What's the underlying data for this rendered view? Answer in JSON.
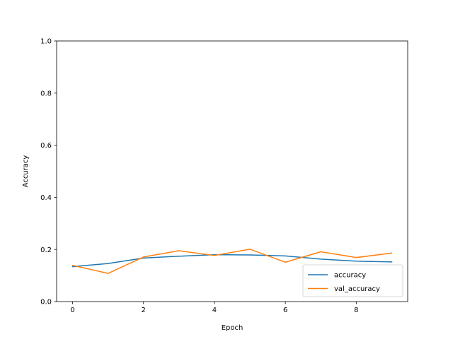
{
  "chart_data": {
    "type": "line",
    "title": "",
    "xlabel": "Epoch",
    "ylabel": "Accuracy",
    "xlim": [
      -0.45,
      9.45
    ],
    "ylim": [
      0.0,
      1.0
    ],
    "xticks": [
      0,
      2,
      4,
      6,
      8
    ],
    "yticks": [
      0.0,
      0.2,
      0.4,
      0.6,
      0.8,
      1.0
    ],
    "xtick_labels": [
      "0",
      "2",
      "4",
      "6",
      "8"
    ],
    "ytick_labels": [
      "0.0",
      "0.2",
      "0.4",
      "0.6",
      "0.8",
      "1.0"
    ],
    "grid": false,
    "legend_position": "lower right",
    "x": [
      0,
      1,
      2,
      3,
      4,
      5,
      6,
      7,
      8,
      9
    ],
    "series": [
      {
        "name": "accuracy",
        "color": "#1f77b4",
        "values": [
          0.134,
          0.146,
          0.167,
          0.174,
          0.18,
          0.179,
          0.175,
          0.163,
          0.155,
          0.152
        ]
      },
      {
        "name": "val_accuracy",
        "color": "#ff7f0e",
        "values": [
          0.139,
          0.108,
          0.171,
          0.195,
          0.177,
          0.201,
          0.151,
          0.191,
          0.169,
          0.186
        ]
      }
    ]
  }
}
